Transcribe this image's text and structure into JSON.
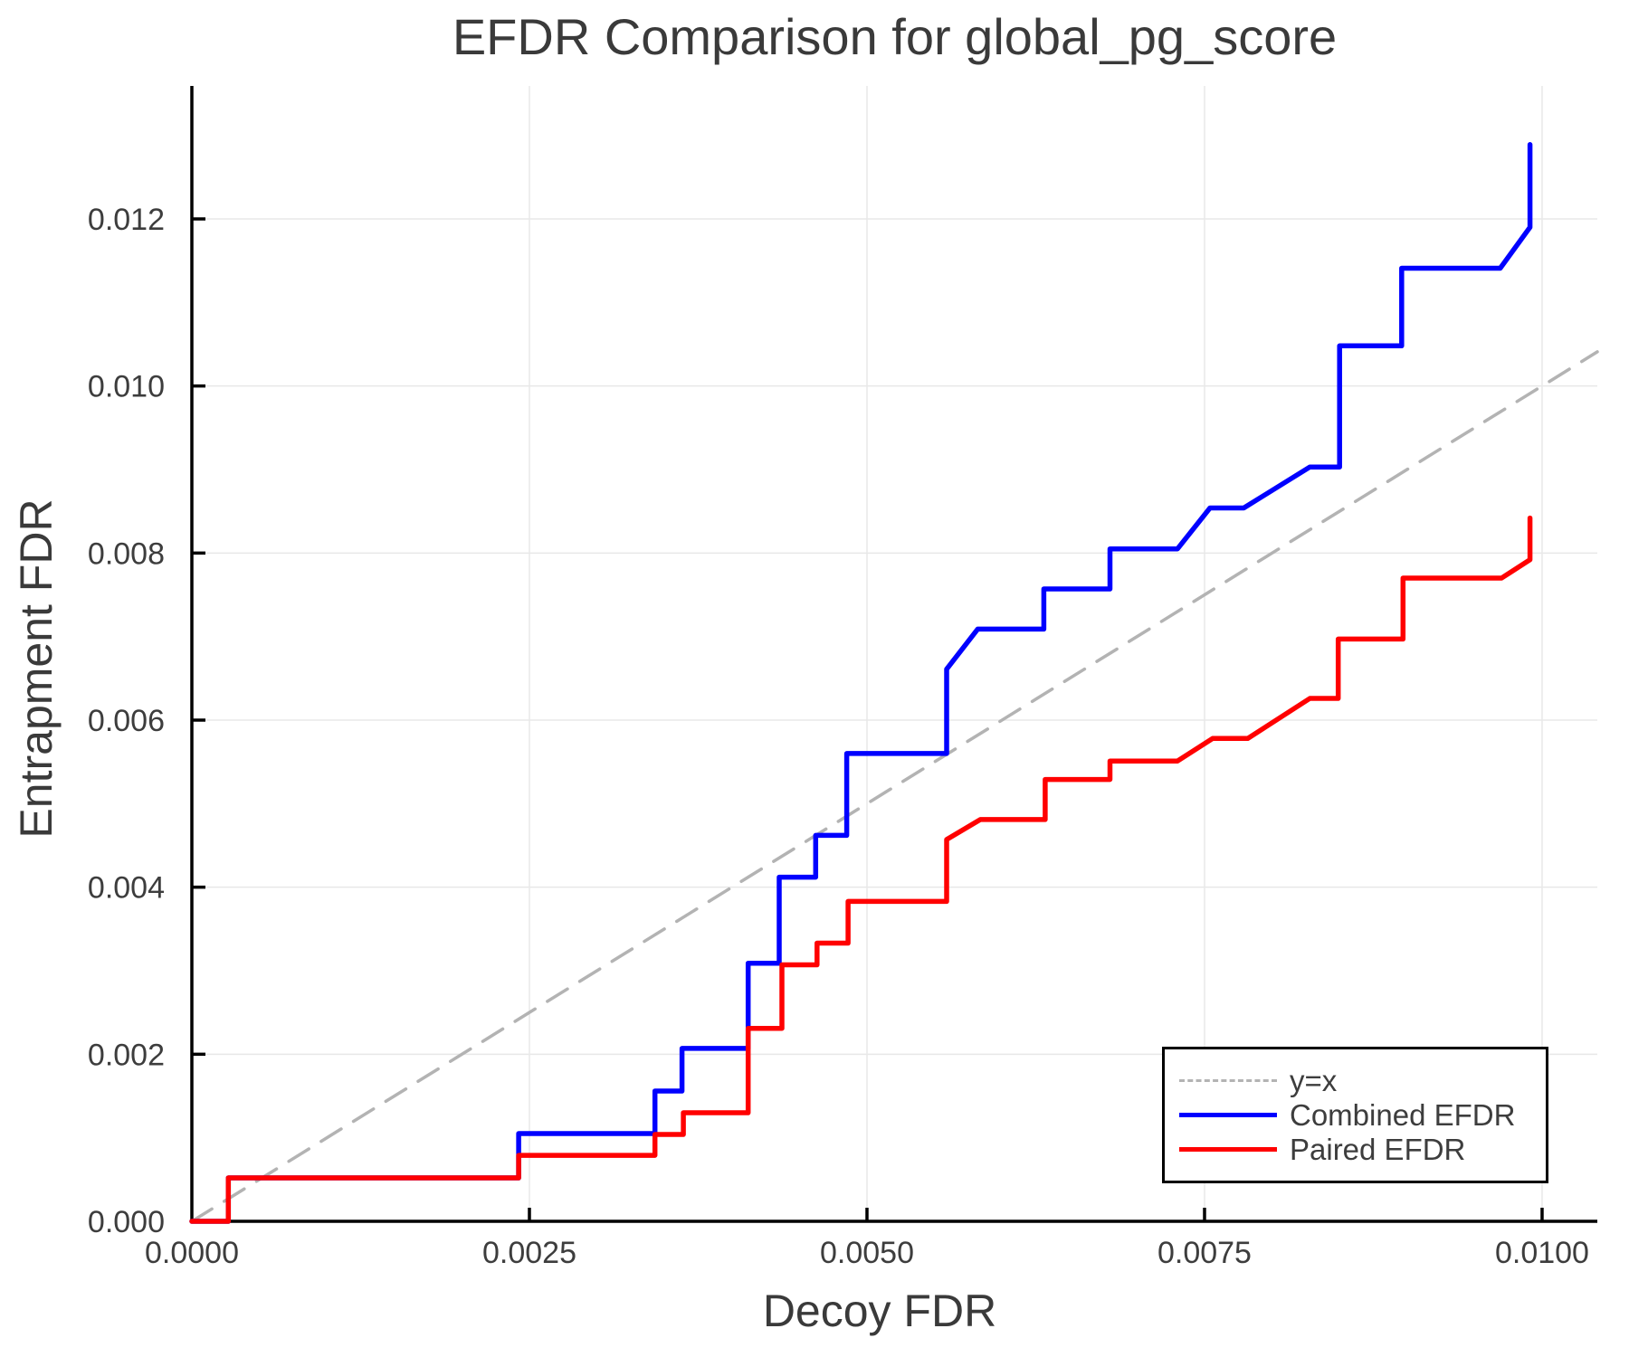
{
  "title": "EFDR Comparison for global_pg_score",
  "axes": {
    "x_label": "Decoy FDR",
    "y_label": "Entrapment FDR",
    "x_range": [
      0,
      0.010409
    ],
    "y_range": [
      0,
      0.013592
    ],
    "x_ticks": [
      {
        "v": 0.0,
        "label": "0.0000"
      },
      {
        "v": 0.0025,
        "label": "0.0025"
      },
      {
        "v": 0.005,
        "label": "0.0050"
      },
      {
        "v": 0.0075,
        "label": "0.0075"
      },
      {
        "v": 0.01,
        "label": "0.0100"
      }
    ],
    "y_ticks": [
      {
        "v": 0.0,
        "label": "0.000"
      },
      {
        "v": 0.002,
        "label": "0.002"
      },
      {
        "v": 0.004,
        "label": "0.004"
      },
      {
        "v": 0.006,
        "label": "0.006"
      },
      {
        "v": 0.008,
        "label": "0.008"
      },
      {
        "v": 0.01,
        "label": "0.010"
      },
      {
        "v": 0.012,
        "label": "0.012"
      }
    ],
    "grid": true,
    "grid_color": "#e8e8e8",
    "spine_color": "#000000",
    "text_color": "#3d3d3d"
  },
  "legend": {
    "position": "lower right",
    "items": [
      {
        "label": "y=x",
        "type": "dashed",
        "color": "#b3b3b3"
      },
      {
        "label": "Combined EFDR",
        "type": "solid",
        "color": "#0000ff"
      },
      {
        "label": "Paired EFDR",
        "type": "solid",
        "color": "#ff0000"
      }
    ]
  },
  "chart_data": {
    "type": "line",
    "title": "EFDR Comparison for global_pg_score",
    "xlabel": "Decoy FDR",
    "ylabel": "Entrapment FDR",
    "xlim": [
      0,
      0.010409
    ],
    "ylim": [
      0,
      0.013592
    ],
    "series": [
      {
        "name": "y=x",
        "color": "#b3b3b3",
        "dash": "26 16",
        "width": 3.5,
        "x": [
          0,
          0.010409
        ],
        "y": [
          0,
          0.010409
        ]
      },
      {
        "name": "Combined EFDR",
        "color": "#0000ff",
        "dash": null,
        "width": 5.5,
        "x": [
          0.0,
          0.00027,
          0.00027,
          0.00242,
          0.00242,
          0.00343,
          0.00343,
          0.00363,
          0.00363,
          0.00412,
          0.00412,
          0.00435,
          0.00435,
          0.00462,
          0.00462,
          0.00485,
          0.00485,
          0.00559,
          0.00559,
          0.00582,
          0.00631,
          0.00631,
          0.0068,
          0.0068,
          0.0073,
          0.00754,
          0.00779,
          0.00828,
          0.0085,
          0.0085,
          0.00896,
          0.00896,
          0.00969,
          0.00991,
          0.00991
        ],
        "y": [
          0.0,
          0.0,
          0.00052,
          0.00052,
          0.00105,
          0.00105,
          0.00156,
          0.00156,
          0.00207,
          0.00207,
          0.00309,
          0.00309,
          0.00412,
          0.00412,
          0.00462,
          0.00462,
          0.0056,
          0.0056,
          0.00661,
          0.00709,
          0.00709,
          0.00757,
          0.00757,
          0.00805,
          0.00805,
          0.00854,
          0.00854,
          0.00903,
          0.00903,
          0.01048,
          0.01048,
          0.01141,
          0.01141,
          0.0119,
          0.01289
        ]
      },
      {
        "name": "Paired EFDR",
        "color": "#ff0000",
        "dash": null,
        "width": 5.5,
        "x": [
          0.0,
          0.00027,
          0.00027,
          0.00242,
          0.00242,
          0.00343,
          0.00343,
          0.00364,
          0.00364,
          0.00412,
          0.00412,
          0.00437,
          0.00437,
          0.00463,
          0.00463,
          0.00486,
          0.00486,
          0.00559,
          0.00559,
          0.00584,
          0.00632,
          0.00632,
          0.0068,
          0.0068,
          0.0073,
          0.00756,
          0.00782,
          0.00828,
          0.00849,
          0.00849,
          0.00897,
          0.00897,
          0.0097,
          0.00991,
          0.00991
        ],
        "y": [
          0.0,
          0.0,
          0.00052,
          0.00052,
          0.00079,
          0.00079,
          0.00104,
          0.00104,
          0.0013,
          0.0013,
          0.00231,
          0.00231,
          0.00307,
          0.00307,
          0.00333,
          0.00333,
          0.00383,
          0.00383,
          0.00457,
          0.00481,
          0.00481,
          0.00529,
          0.00529,
          0.00551,
          0.00551,
          0.00578,
          0.00578,
          0.00626,
          0.00626,
          0.00697,
          0.00697,
          0.0077,
          0.0077,
          0.00792,
          0.00842
        ]
      }
    ]
  }
}
